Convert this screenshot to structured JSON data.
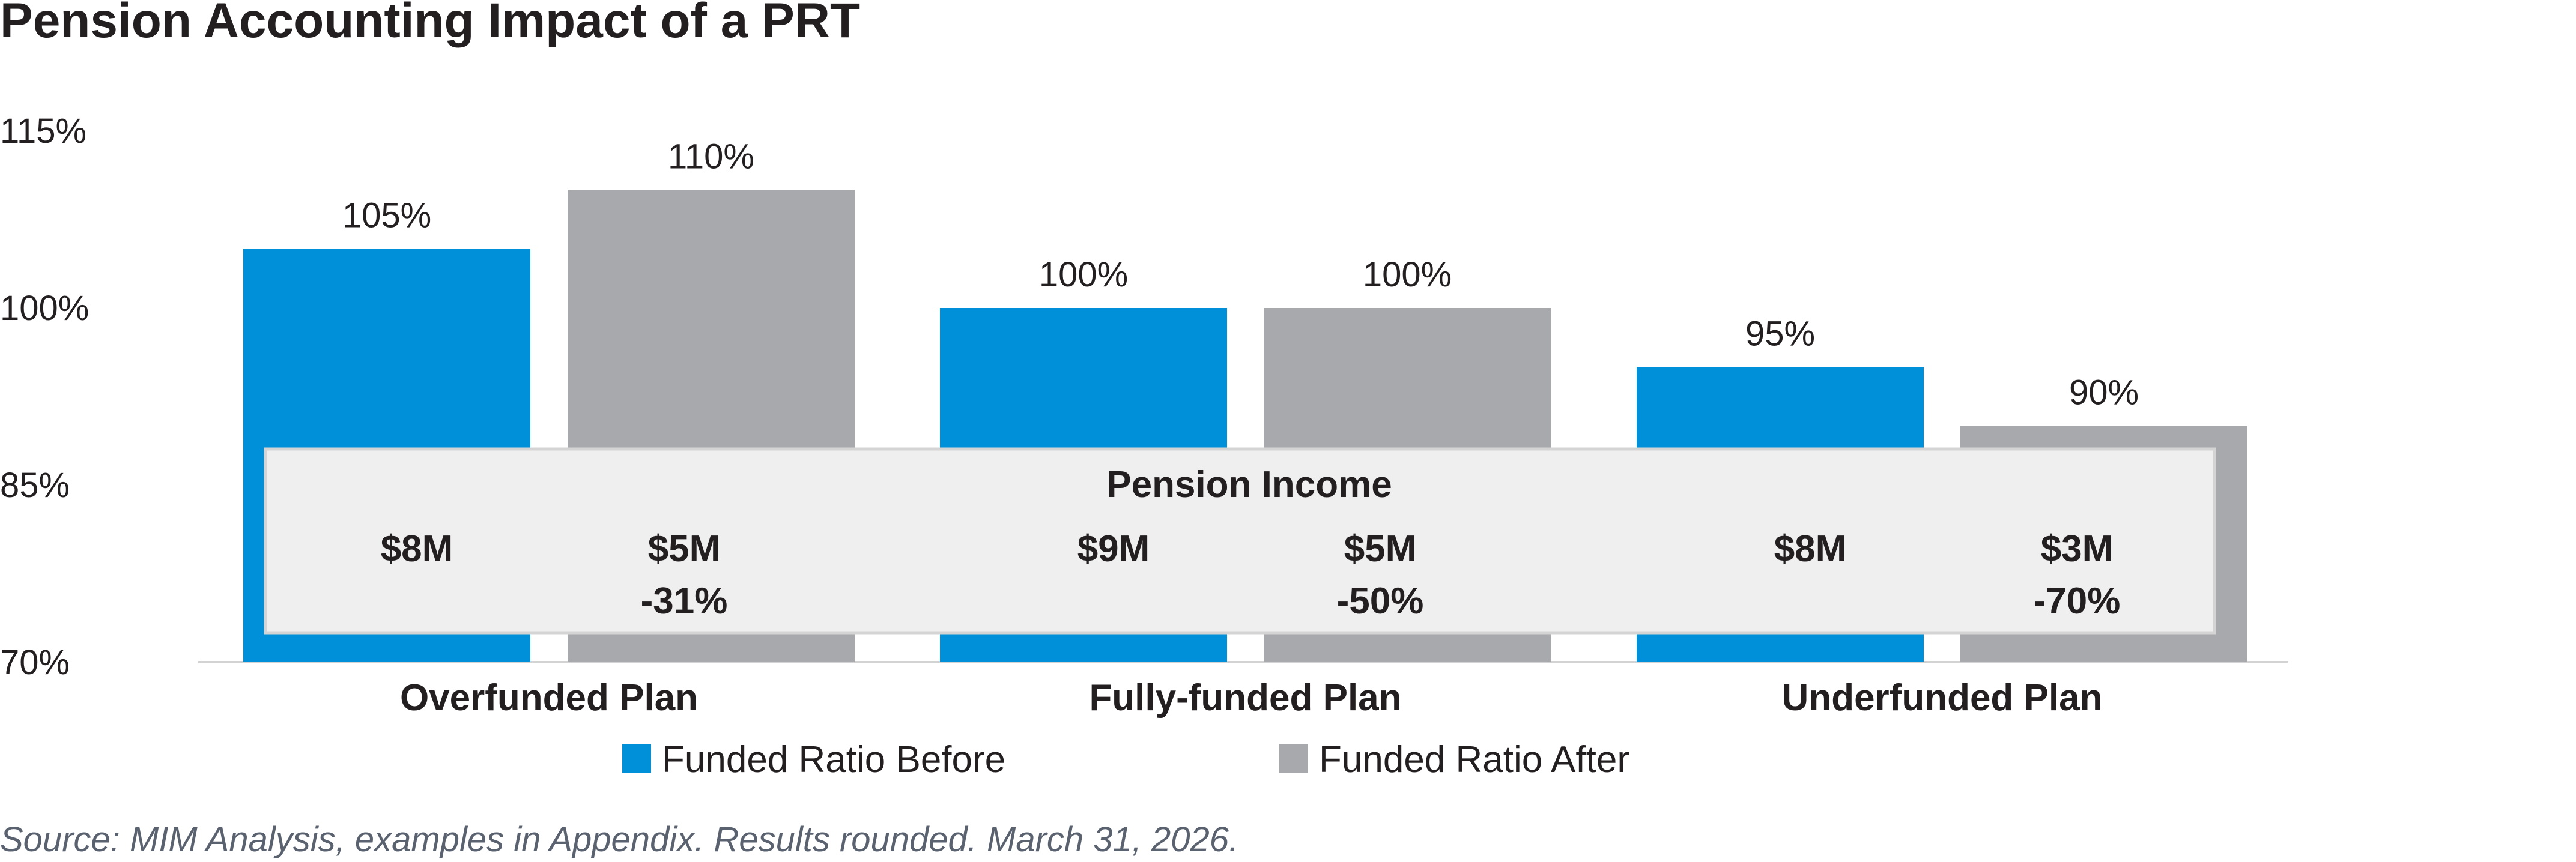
{
  "chart_data": {
    "type": "bar",
    "title": "Pension Accounting Impact of a PRT",
    "categories": [
      "Overfunded Plan",
      "Fully-funded Plan",
      "Underfunded Plan"
    ],
    "series": [
      {
        "name": "Funded Ratio Before",
        "values": [
          105,
          100,
          95
        ],
        "labels": [
          "105%",
          "100%",
          "95%"
        ],
        "color": "#0090d9"
      },
      {
        "name": "Funded Ratio After",
        "values": [
          110,
          100,
          90
        ],
        "labels": [
          "110%",
          "100%",
          "90%"
        ],
        "color": "#a7a9ac"
      }
    ],
    "ylim": [
      70,
      115
    ],
    "yticks": [
      70,
      85,
      100,
      115
    ],
    "ytick_labels": [
      "70%",
      "85%",
      "100%",
      "115%"
    ],
    "legend_position": "bottom",
    "grid": false,
    "xlabel": "",
    "ylabel": "",
    "pension_income": {
      "title": "Pension Income",
      "before": [
        "$8M",
        "$9M",
        "$8M"
      ],
      "after": [
        "$5M",
        "$5M",
        "$3M"
      ],
      "change": [
        "-31%",
        "-50%",
        "-70%"
      ]
    },
    "source": "Source: MIM Analysis, examples in Appendix. Results rounded. March 31, 2026."
  }
}
